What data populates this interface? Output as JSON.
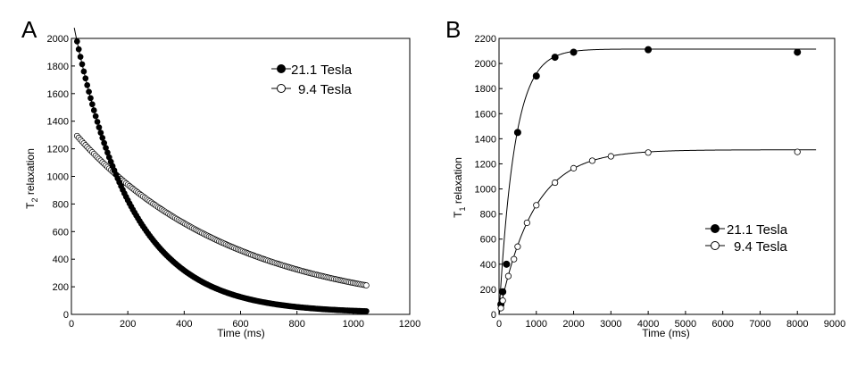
{
  "chart_data": [
    {
      "panel": "A",
      "type": "scatter",
      "xlabel": "Time (ms)",
      "ylabel_main": "T",
      "ylabel_sub": "2",
      "ylabel_rest": " relaxation",
      "xlim": [
        0,
        1200
      ],
      "ylim": [
        0,
        2000
      ],
      "xticks": [
        0,
        200,
        400,
        600,
        800,
        1000,
        1200
      ],
      "yticks": [
        0,
        200,
        400,
        600,
        800,
        1000,
        1200,
        1400,
        1600,
        1800,
        2000
      ],
      "series": [
        {
          "name": "21.1 Tesla",
          "marker": "filled-circle",
          "legend_label": "21.1 Tesla",
          "x_start": 20,
          "x_end": 1050,
          "x_step": 6,
          "model": {
            "a": 10,
            "b": 2170,
            "tau": 205
          }
        },
        {
          "name": "9.4 Tesla",
          "marker": "open-circle",
          "legend_label": "9.4 Tesla",
          "x_start": 20,
          "x_end": 1050,
          "x_step": 6,
          "model": {
            "a": 0,
            "b": 1340,
            "tau": 565
          }
        }
      ],
      "fit_line": {
        "x_start": 10,
        "x_end": 155,
        "model": {
          "a": 10,
          "b": 2170,
          "tau": 205
        }
      }
    },
    {
      "panel": "B",
      "type": "scatter",
      "xlabel": "Time (ms)",
      "ylabel_main": "T",
      "ylabel_sub": "1",
      "ylabel_rest": " relaxation",
      "xlim": [
        0,
        9000
      ],
      "ylim": [
        0,
        2200
      ],
      "xticks": [
        0,
        1000,
        2000,
        3000,
        4000,
        5000,
        6000,
        7000,
        8000,
        9000
      ],
      "yticks": [
        0,
        200,
        400,
        600,
        800,
        1000,
        1200,
        1400,
        1600,
        1800,
        2000,
        2200
      ],
      "series": [
        {
          "name": "21.1 Tesla",
          "marker": "filled-circle",
          "legend_label": "21.1 Tesla",
          "x": [
            50,
            100,
            200,
            500,
            1000,
            1500,
            2000,
            4000,
            8000
          ],
          "y": [
            80,
            180,
            400,
            1450,
            1900,
            2050,
            2090,
            2110,
            2090
          ],
          "fit": {
            "A": 2115,
            "T1": 420,
            "x_end": 8500
          }
        },
        {
          "name": "9.4 Tesla",
          "marker": "open-circle",
          "legend_label": "9.4 Tesla",
          "x": [
            50,
            100,
            250,
            400,
            500,
            750,
            1000,
            1500,
            2000,
            2500,
            3000,
            4000,
            8000
          ],
          "y": [
            50,
            110,
            305,
            440,
            540,
            730,
            870,
            1050,
            1165,
            1225,
            1260,
            1290,
            1295
          ],
          "fit": {
            "A": 1312,
            "T1": 920,
            "x_end": 8500
          }
        }
      ]
    }
  ]
}
